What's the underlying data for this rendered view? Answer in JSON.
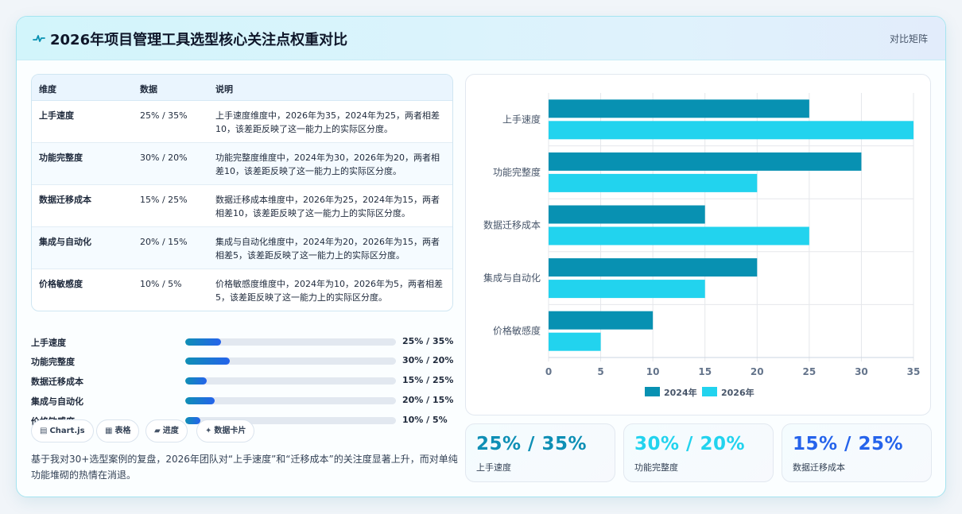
{
  "header": {
    "title": "2026年项目管理工具选型核心关注点权重对比",
    "tag": "对比矩阵"
  },
  "table": {
    "headers": [
      "维度",
      "数据",
      "说明"
    ],
    "rows": [
      {
        "dimension": "上手速度",
        "data": "25% / 35%",
        "desc": "上手速度维度中，2026年为35，2024年为25，两者相差10，该差距反映了这一能力上的实际区分度。"
      },
      {
        "dimension": "功能完整度",
        "data": "30% / 20%",
        "desc": "功能完整度维度中，2024年为30，2026年为20，两者相差10，该差距反映了这一能力上的实际区分度。"
      },
      {
        "dimension": "数据迁移成本",
        "data": "15% / 25%",
        "desc": "数据迁移成本维度中，2026年为25，2024年为15，两者相差10，该差距反映了这一能力上的实际区分度。"
      },
      {
        "dimension": "集成与自动化",
        "data": "20% / 15%",
        "desc": "集成与自动化维度中，2024年为20，2026年为15，两者相差5，该差距反映了这一能力上的实际区分度。"
      },
      {
        "dimension": "价格敏感度",
        "data": "10% / 5%",
        "desc": "价格敏感度维度中，2024年为10，2026年为5，两者相差5，该差距反映了这一能力上的实际区分度。"
      }
    ]
  },
  "progress": [
    {
      "label": "上手速度",
      "value_text": "25% / 35%",
      "fill": 0.17
    },
    {
      "label": "功能完整度",
      "value_text": "30% / 20%",
      "fill": 0.21
    },
    {
      "label": "数据迁移成本",
      "value_text": "15% / 25%",
      "fill": 0.1
    },
    {
      "label": "集成与自动化",
      "value_text": "20% / 15%",
      "fill": 0.14
    },
    {
      "label": "价格敏感度",
      "value_text": "10% / 5%",
      "fill": 0.07
    }
  ],
  "chips": [
    {
      "label": "Chart.js",
      "icon": "▤"
    },
    {
      "label": "表格",
      "icon": "▦"
    },
    {
      "label": "进度",
      "icon": "▰"
    },
    {
      "label": "数据卡片",
      "icon": "✦"
    }
  ],
  "note": "基于我对30+选型案例的复盘，2026年团队对“上手速度”和“迁移成本”的关注度显著上升，而对单纯功能堆砌的热情在消退。",
  "stats": [
    {
      "value": "25% / 35%",
      "label": "上手速度",
      "color": "#0e8fb5"
    },
    {
      "value": "30% / 20%",
      "label": "功能完整度",
      "color": "#22d3ee"
    },
    {
      "value": "15% / 25%",
      "label": "数据迁移成本",
      "color": "#2563eb"
    }
  ],
  "colors": {
    "series_2024": "#0891b2",
    "series_2026": "#22d3ee",
    "icon": "#0891b2"
  },
  "icons": {
    "header": "pulse-icon"
  },
  "chart_data": {
    "type": "bar",
    "orientation": "horizontal",
    "categories": [
      "上手速度",
      "功能完整度",
      "数据迁移成本",
      "集成与自动化",
      "价格敏感度"
    ],
    "series": [
      {
        "name": "2024年",
        "values": [
          25,
          30,
          15,
          20,
          10
        ]
      },
      {
        "name": "2026年",
        "values": [
          35,
          20,
          25,
          15,
          5
        ]
      }
    ],
    "xlim": [
      0,
      35
    ],
    "xticks": [
      0,
      5,
      10,
      15,
      20,
      25,
      30,
      35
    ],
    "grid": true,
    "legend": "bottom"
  }
}
